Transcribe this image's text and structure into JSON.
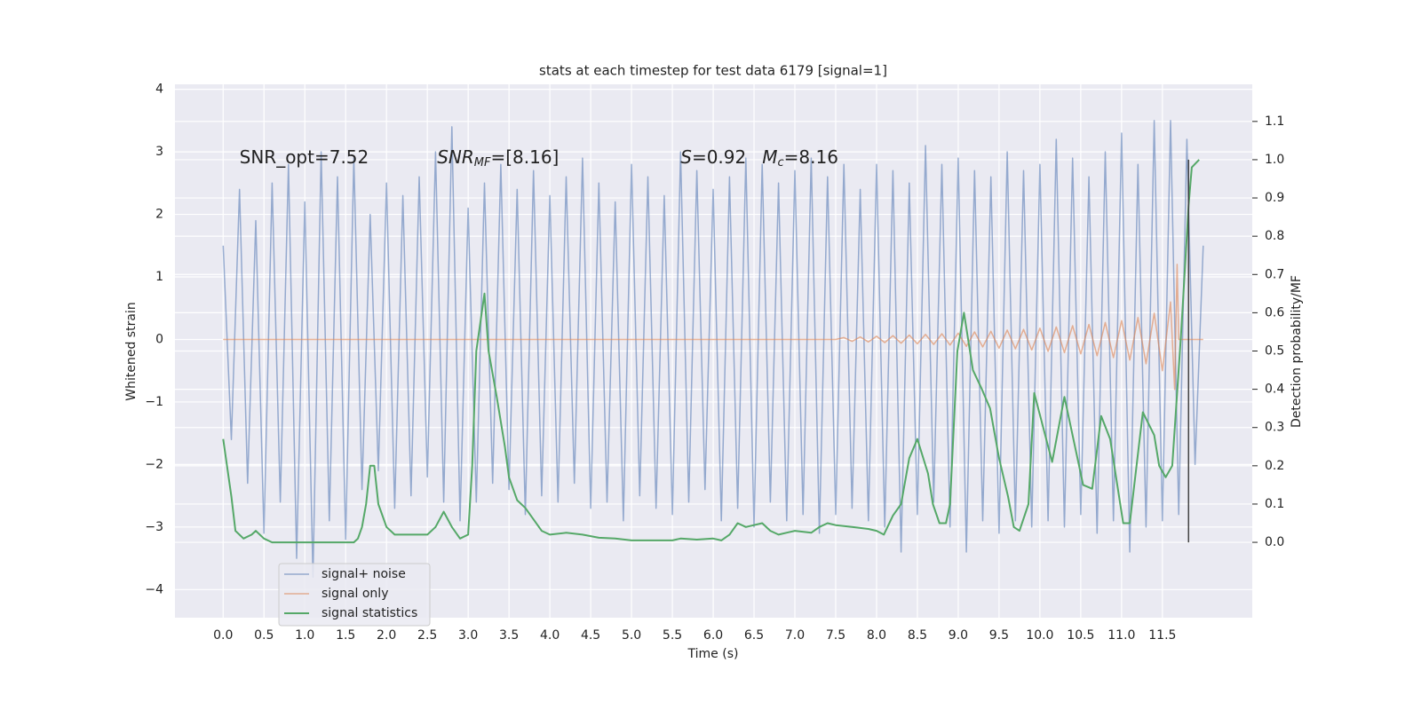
{
  "chart_data": {
    "type": "line",
    "title": "stats at each timestep for test data 6179 [signal=1]",
    "x_label": "Time (s)",
    "y_label": "Whitened strain",
    "y2_label": "Detection probability/MF",
    "xlim": [
      -0.59,
      12.6
    ],
    "ylim": [
      -4.45,
      4.08
    ],
    "y2lim": [
      -0.197,
      1.197
    ],
    "xticks": [
      {
        "value": 0,
        "label": "0.0"
      },
      0.5,
      {
        "value": 1,
        "label": "1.0"
      },
      1.5,
      {
        "value": 2,
        "label": "2.0"
      },
      2.5,
      {
        "value": 3,
        "label": "3.0"
      },
      3.5,
      {
        "value": 4,
        "label": "4.0"
      },
      4.5,
      {
        "value": 5,
        "label": "5.0"
      },
      5.5,
      {
        "value": 6,
        "label": "6.0"
      },
      6.5,
      {
        "value": 7,
        "label": "7.0"
      },
      7.5,
      {
        "value": 8,
        "label": "8.0"
      },
      8.5,
      {
        "value": 9,
        "label": "9.0"
      },
      9.5,
      {
        "value": 10,
        "label": "10.0"
      },
      10.5,
      {
        "value": 11,
        "label": "11.0"
      },
      11.5
    ],
    "yticks": [
      {
        "value": -4,
        "label": "−4"
      },
      {
        "value": -3,
        "label": "−3"
      },
      {
        "value": -2,
        "label": "−2"
      },
      {
        "value": -1,
        "label": "−1"
      },
      0,
      1,
      2,
      3,
      4
    ],
    "y2ticks": [
      {
        "value": 0,
        "label": "0.0"
      },
      0.1,
      0.2,
      0.3,
      0.4,
      0.5,
      0.6,
      0.7,
      0.8,
      0.9,
      {
        "value": 1,
        "label": "1.0"
      },
      1.1
    ],
    "grid": true,
    "legend": "lower left",
    "annotations": [
      {
        "base": "SNR_opt=7.52"
      },
      {
        "base": "SNR",
        "sub": "MF",
        "rest": "=[8.16]"
      },
      {
        "base": "S",
        "rest": "=0.92"
      },
      {
        "base": "M",
        "sub": "c",
        "rest": "=8.16"
      }
    ],
    "vline": {
      "x": 11.82,
      "y2": [
        0,
        1.0
      ],
      "color": "#444444"
    },
    "series": [
      {
        "name": "signal+ noise",
        "color": "#4c72b0",
        "x": [
          0.0,
          0.1,
          0.2,
          0.3,
          0.4,
          0.5,
          0.6,
          0.7,
          0.8,
          0.9,
          1.0,
          1.1,
          1.2,
          1.3,
          1.4,
          1.5,
          1.6,
          1.7,
          1.8,
          1.9,
          2.0,
          2.1,
          2.2,
          2.3,
          2.4,
          2.5,
          2.6,
          2.7,
          2.8,
          2.9,
          3.0,
          3.1,
          3.2,
          3.3,
          3.4,
          3.5,
          3.6,
          3.7,
          3.8,
          3.9,
          4.0,
          4.1,
          4.2,
          4.3,
          4.4,
          4.5,
          4.6,
          4.7,
          4.8,
          4.9,
          5.0,
          5.1,
          5.2,
          5.3,
          5.4,
          5.5,
          5.6,
          5.7,
          5.8,
          5.9,
          6.0,
          6.1,
          6.2,
          6.3,
          6.4,
          6.5,
          6.6,
          6.7,
          6.8,
          6.9,
          7.0,
          7.1,
          7.2,
          7.3,
          7.4,
          7.5,
          7.6,
          7.7,
          7.8,
          7.9,
          8.0,
          8.1,
          8.2,
          8.3,
          8.4,
          8.5,
          8.6,
          8.7,
          8.8,
          8.9,
          9.0,
          9.1,
          9.2,
          9.3,
          9.4,
          9.5,
          9.6,
          9.7,
          9.8,
          9.9,
          10.0,
          10.1,
          10.2,
          10.3,
          10.4,
          10.5,
          10.6,
          10.7,
          10.8,
          10.9,
          11.0,
          11.1,
          11.2,
          11.3,
          11.4,
          11.5,
          11.6,
          11.7,
          11.8,
          11.9,
          12.0
        ],
        "values": [
          1.5,
          -1.6,
          2.4,
          -2.3,
          1.9,
          -3.1,
          2.5,
          -2.6,
          2.8,
          -3.5,
          2.2,
          -3.8,
          3.0,
          -2.9,
          2.6,
          -3.2,
          2.9,
          -2.4,
          2.0,
          -2.1,
          2.5,
          -2.7,
          2.3,
          -2.5,
          2.6,
          -2.2,
          3.0,
          -2.6,
          3.4,
          -2.9,
          2.1,
          -2.6,
          2.5,
          -2.3,
          2.8,
          -2.4,
          2.4,
          -2.8,
          2.7,
          -2.5,
          2.3,
          -2.6,
          2.6,
          -2.3,
          2.9,
          -2.7,
          2.5,
          -2.6,
          2.2,
          -2.9,
          2.8,
          -2.5,
          2.6,
          -2.7,
          2.3,
          -2.8,
          3.0,
          -2.6,
          2.7,
          -2.4,
          2.4,
          -2.9,
          2.6,
          -2.7,
          2.9,
          -3.0,
          2.8,
          -2.6,
          2.5,
          -2.9,
          2.7,
          -2.8,
          2.9,
          -3.1,
          2.6,
          -2.8,
          2.8,
          -2.7,
          2.4,
          -2.9,
          2.8,
          -3.0,
          2.7,
          -3.4,
          2.5,
          -2.8,
          3.1,
          -2.6,
          2.8,
          -3.0,
          2.9,
          -3.4,
          2.7,
          -2.9,
          2.6,
          -3.1,
          3.0,
          -2.9,
          2.7,
          -3.0,
          2.8,
          -2.9,
          3.2,
          -3.0,
          2.9,
          -2.8,
          2.6,
          -3.1,
          3.0,
          -2.9,
          3.3,
          -3.4,
          2.8,
          -3.0,
          3.5,
          -2.9,
          3.5,
          -2.8,
          3.2,
          -2.0,
          1.5
        ]
      },
      {
        "name": "signal only",
        "color": "#dd8452",
        "x": [
          0.0,
          7.5,
          7.6,
          7.7,
          7.8,
          7.9,
          8.0,
          8.1,
          8.2,
          8.3,
          8.4,
          8.5,
          8.6,
          8.7,
          8.8,
          8.9,
          9.0,
          9.1,
          9.2,
          9.3,
          9.4,
          9.5,
          9.6,
          9.7,
          9.8,
          9.9,
          10.0,
          10.1,
          10.2,
          10.3,
          10.4,
          10.5,
          10.6,
          10.7,
          10.8,
          10.9,
          11.0,
          11.1,
          11.2,
          11.3,
          11.4,
          11.5,
          11.6,
          11.65,
          11.68,
          11.7,
          12.0
        ],
        "values": [
          0,
          0,
          0.03,
          -0.03,
          0.04,
          -0.04,
          0.05,
          -0.05,
          0.06,
          -0.06,
          0.07,
          -0.07,
          0.08,
          -0.08,
          0.09,
          -0.09,
          0.1,
          -0.11,
          0.12,
          -0.12,
          0.13,
          -0.14,
          0.15,
          -0.15,
          0.16,
          -0.17,
          0.18,
          -0.19,
          0.2,
          -0.21,
          0.22,
          -0.23,
          0.24,
          -0.26,
          0.27,
          -0.29,
          0.3,
          -0.33,
          0.35,
          -0.39,
          0.42,
          -0.5,
          0.6,
          -0.8,
          1.2,
          0,
          0
        ]
      },
      {
        "name": "signal statistics",
        "color": "#55a868",
        "axis": "y2",
        "x": [
          0.0,
          0.1,
          0.15,
          0.25,
          0.35,
          0.4,
          0.5,
          0.6,
          0.8,
          1.0,
          1.2,
          1.4,
          1.6,
          1.65,
          1.7,
          1.75,
          1.8,
          1.85,
          1.9,
          2.0,
          2.1,
          2.3,
          2.5,
          2.6,
          2.7,
          2.8,
          2.9,
          3.0,
          3.05,
          3.1,
          3.2,
          3.25,
          3.35,
          3.45,
          3.5,
          3.6,
          3.7,
          3.8,
          3.9,
          4.0,
          4.2,
          4.4,
          4.6,
          4.8,
          5.0,
          5.5,
          5.6,
          5.8,
          6.0,
          6.1,
          6.2,
          6.3,
          6.4,
          6.6,
          6.7,
          6.8,
          7.0,
          7.2,
          7.3,
          7.4,
          7.5,
          7.7,
          7.9,
          8.0,
          8.09,
          8.2,
          8.3,
          8.4,
          8.5,
          8.63,
          8.69,
          8.77,
          8.85,
          8.9,
          8.99,
          9.07,
          9.18,
          9.29,
          9.39,
          9.5,
          9.61,
          9.68,
          9.75,
          9.86,
          9.93,
          10.15,
          10.3,
          10.53,
          10.64,
          10.75,
          10.86,
          11.02,
          11.1,
          11.26,
          11.4,
          11.46,
          11.54,
          11.62,
          11.73,
          11.82,
          11.86,
          11.95
        ],
        "values": [
          0.27,
          0.12,
          0.03,
          0.01,
          0.02,
          0.03,
          0.01,
          0.0,
          0.0,
          0.0,
          0.0,
          0.0,
          0.0,
          0.01,
          0.04,
          0.1,
          0.2,
          0.2,
          0.1,
          0.04,
          0.02,
          0.02,
          0.02,
          0.04,
          0.08,
          0.04,
          0.01,
          0.02,
          0.2,
          0.5,
          0.65,
          0.5,
          0.38,
          0.25,
          0.17,
          0.11,
          0.09,
          0.06,
          0.03,
          0.02,
          0.025,
          0.02,
          0.012,
          0.01,
          0.005,
          0.005,
          0.01,
          0.007,
          0.01,
          0.005,
          0.02,
          0.05,
          0.04,
          0.05,
          0.03,
          0.02,
          0.03,
          0.025,
          0.04,
          0.05,
          0.045,
          0.04,
          0.035,
          0.03,
          0.02,
          0.07,
          0.1,
          0.22,
          0.27,
          0.18,
          0.1,
          0.05,
          0.05,
          0.1,
          0.5,
          0.6,
          0.45,
          0.4,
          0.35,
          0.22,
          0.12,
          0.04,
          0.03,
          0.1,
          0.39,
          0.21,
          0.38,
          0.15,
          0.14,
          0.33,
          0.27,
          0.05,
          0.05,
          0.34,
          0.28,
          0.2,
          0.17,
          0.2,
          0.55,
          0.88,
          0.98,
          1.0
        ]
      }
    ]
  }
}
